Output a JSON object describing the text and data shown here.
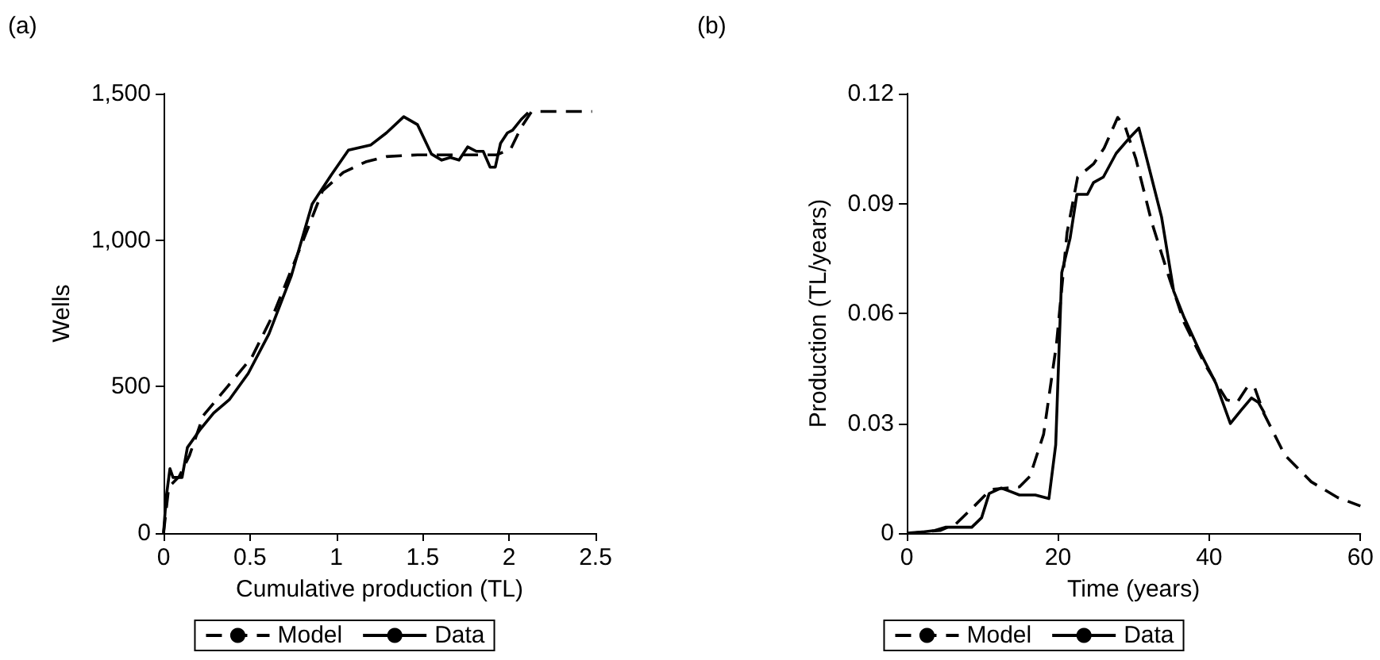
{
  "chart_data": [
    {
      "type": "line",
      "title": "(a)",
      "xlabel": "Cumulative production (TL)",
      "ylabel": "Wells",
      "xlim": [
        0,
        2.5
      ],
      "xticks": [
        0,
        0.5,
        1,
        1.5,
        2,
        2.5
      ],
      "ylim": [
        0,
        1500
      ],
      "yticks": [
        0,
        500,
        {
          "value": 1000,
          "label": "1,000"
        },
        {
          "value": 1500,
          "label": "1,500"
        }
      ],
      "grid": false,
      "legend": "bottom",
      "marker": "none",
      "series": [
        {
          "name": "Model",
          "color": "#000000",
          "line_style": "dashed",
          "x": [
            0,
            0.03,
            0.09,
            0.15,
            0.23,
            0.37,
            0.51,
            0.64,
            0.8,
            0.92,
            1.04,
            1.17,
            1.29,
            1.47,
            1.72,
            1.93,
            2.01,
            2.07,
            2.13,
            2.48
          ],
          "values": [
            0,
            157,
            193,
            265,
            401,
            500,
            599,
            753,
            987,
            1168,
            1231,
            1267,
            1285,
            1291,
            1291,
            1291,
            1312,
            1385,
            1439,
            1439
          ]
        },
        {
          "name": "Data",
          "color": "#000000",
          "line_style": "solid",
          "x": [
            0,
            0.015,
            0.037,
            0.055,
            0.107,
            0.138,
            0.215,
            0.29,
            0.38,
            0.49,
            0.61,
            0.74,
            0.86,
            0.97,
            1.07,
            1.2,
            1.29,
            1.39,
            1.47,
            1.55,
            1.61,
            1.66,
            1.71,
            1.76,
            1.81,
            1.85,
            1.89,
            1.92,
            1.95,
            1.99,
            2.02,
            2.07,
            2.11
          ],
          "values": [
            0,
            121,
            220,
            190,
            190,
            292,
            356,
            410,
            455,
            545,
            680,
            879,
            1123,
            1222,
            1307,
            1325,
            1366,
            1421,
            1394,
            1294,
            1273,
            1282,
            1273,
            1318,
            1303,
            1303,
            1249,
            1249,
            1330,
            1366,
            1375,
            1412,
            1435
          ]
        }
      ]
    },
    {
      "type": "line",
      "title": "(b)",
      "xlabel": "Time (years)",
      "ylabel": "Production (TL/years)",
      "xlim": [
        0,
        60
      ],
      "xticks": [
        0,
        20,
        40,
        60
      ],
      "ylim": [
        0,
        0.12
      ],
      "yticks": [
        0,
        0.03,
        0.06,
        0.09,
        0.12
      ],
      "grid": false,
      "legend": "bottom",
      "marker": "none",
      "series": [
        {
          "name": "Model",
          "color": "#000000",
          "line_style": "dashed",
          "x": [
            0,
            4.4,
            6.5,
            9,
            11.1,
            14.9,
            16.3,
            18.1,
            19.8,
            21.2,
            22.6,
            24.7,
            26.1,
            27.9,
            28.9,
            30.3,
            32.4,
            34.6,
            36.7,
            39.5,
            42.3,
            43.7,
            45.1,
            46,
            47.2,
            50,
            53.5,
            57,
            60
          ],
          "values": [
            0,
            0.0007,
            0.0025,
            0.0075,
            0.0119,
            0.0126,
            0.0155,
            0.027,
            0.0516,
            0.082,
            0.0972,
            0.1008,
            0.1051,
            0.1135,
            0.1109,
            0.1022,
            0.0849,
            0.0704,
            0.0574,
            0.0458,
            0.0364,
            0.0357,
            0.0401,
            0.0398,
            0.0328,
            0.0213,
            0.014,
            0.0097,
            0.0074
          ]
        },
        {
          "name": "Data",
          "color": "#000000",
          "line_style": "solid",
          "x": [
            0.9,
            3.7,
            5.1,
            8.6,
            9.9,
            10.9,
            12.5,
            14.9,
            17,
            18.8,
            19.7,
            20.5,
            21.6,
            22.5,
            23.9,
            24.7,
            26,
            27.7,
            29.5,
            30.7,
            32.1,
            33.7,
            35.3,
            36.7,
            38.8,
            40.9,
            42.8,
            44.2,
            45.6,
            46.5,
            47.3
          ],
          "values": [
            0,
            0.0007,
            0.0016,
            0.0016,
            0.0042,
            0.0108,
            0.0123,
            0.0104,
            0.0104,
            0.0094,
            0.0241,
            0.0711,
            0.0805,
            0.0925,
            0.0925,
            0.0957,
            0.0972,
            0.1037,
            0.108,
            0.1106,
            0.0993,
            0.0863,
            0.0661,
            0.0588,
            0.0494,
            0.0408,
            0.0299,
            0.0335,
            0.0369,
            0.0357,
            0.0328
          ]
        }
      ]
    }
  ]
}
